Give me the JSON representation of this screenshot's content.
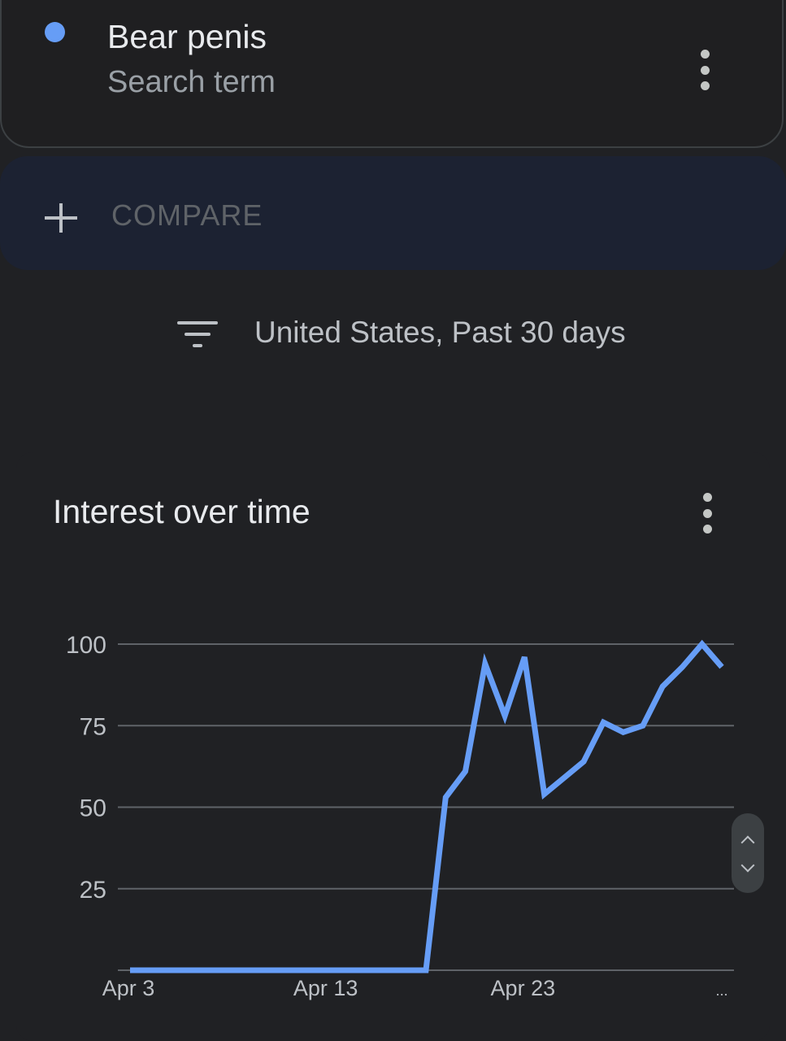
{
  "search_term": {
    "title": "Bear penis",
    "subtitle": "Search term",
    "color": "#669df6"
  },
  "compare": {
    "label": "COMPARE"
  },
  "filter": {
    "label": "United States, Past 30 days"
  },
  "chart_section": {
    "title": "Interest over time"
  },
  "icons": [
    "more-vert-icon",
    "plus-icon",
    "filter-icon",
    "chevron-up-icon",
    "chevron-down-icon"
  ],
  "chart_data": {
    "type": "line",
    "title": "Interest over time",
    "xlabel": "",
    "ylabel": "",
    "x_tick_labels": [
      "Apr 3",
      "Apr 13",
      "Apr 23",
      "..."
    ],
    "y_ticks": [
      25,
      50,
      75,
      100
    ],
    "ylim": [
      0,
      100
    ],
    "grid": true,
    "x": [
      "Apr 3",
      "Apr 4",
      "Apr 5",
      "Apr 6",
      "Apr 7",
      "Apr 8",
      "Apr 9",
      "Apr 10",
      "Apr 11",
      "Apr 12",
      "Apr 13",
      "Apr 14",
      "Apr 15",
      "Apr 16",
      "Apr 17",
      "Apr 18",
      "Apr 19",
      "Apr 20",
      "Apr 21",
      "Apr 22",
      "Apr 23",
      "Apr 24",
      "Apr 25",
      "Apr 26",
      "Apr 27",
      "Apr 28",
      "Apr 29",
      "Apr 30",
      "May 1",
      "May 2",
      "May 3"
    ],
    "series": [
      {
        "color": "#669df6",
        "values": [
          0,
          0,
          0,
          0,
          0,
          0,
          0,
          0,
          0,
          0,
          0,
          0,
          0,
          0,
          0,
          0,
          53,
          61,
          94,
          78,
          96,
          54,
          59,
          64,
          76,
          73,
          75,
          87,
          93,
          100,
          93
        ]
      }
    ]
  }
}
